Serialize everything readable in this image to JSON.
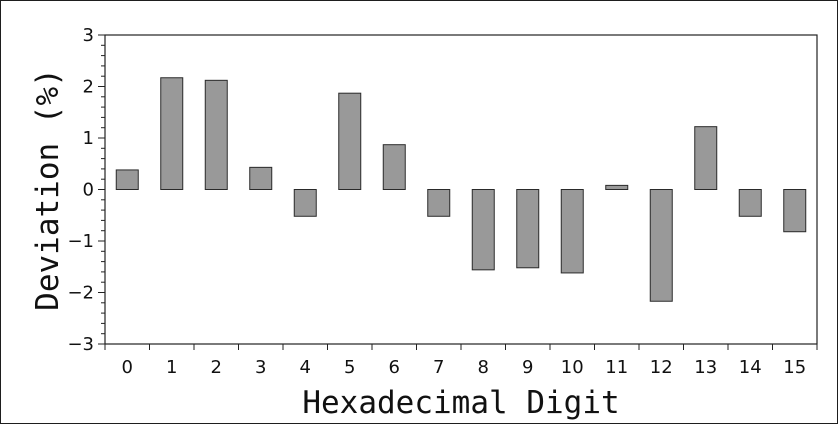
{
  "chart_data": {
    "type": "bar",
    "xlabel": "Hexadecimal Digit",
    "ylabel": "Deviation (%)",
    "categories": [
      "0",
      "1",
      "2",
      "3",
      "4",
      "5",
      "6",
      "7",
      "8",
      "9",
      "10",
      "11",
      "12",
      "13",
      "14",
      "15"
    ],
    "values": [
      0.38,
      2.17,
      2.12,
      0.43,
      -0.52,
      1.87,
      0.87,
      -0.52,
      -1.56,
      -1.52,
      -1.62,
      0.08,
      -2.17,
      1.22,
      -0.52,
      -0.82
    ],
    "ylim": [
      -3,
      3
    ],
    "yticks": [
      "−3",
      "−2",
      "−1",
      "0",
      "1",
      "2",
      "3"
    ],
    "grid": false,
    "colors": {
      "bar_fill": "#999999",
      "bar_edge": "#2a2a2a",
      "axis": "#222222"
    }
  }
}
